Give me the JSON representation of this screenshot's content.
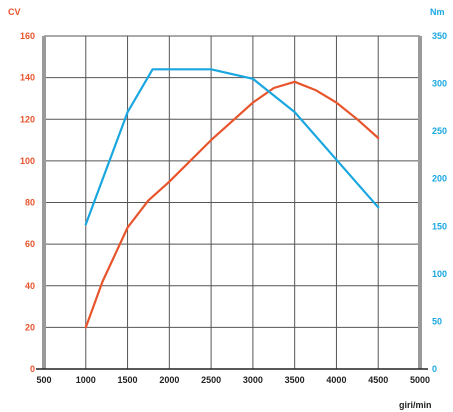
{
  "chart_data": {
    "type": "line",
    "y_left_unit": "CV",
    "y_right_unit": "Nm",
    "x_unit": "giri/min",
    "xlim": [
      500,
      5000
    ],
    "ylim_left": [
      0,
      160
    ],
    "ylim_right": [
      0,
      350
    ],
    "x_ticks": [
      500,
      1000,
      1500,
      2000,
      2500,
      3000,
      3500,
      4000,
      4500,
      5000
    ],
    "y_left_ticks": [
      0,
      20,
      40,
      60,
      80,
      100,
      120,
      140,
      160
    ],
    "y_right_ticks": [
      0,
      50,
      100,
      150,
      200,
      250,
      300,
      350
    ],
    "grid": true,
    "series": [
      {
        "axis": "left",
        "color": "#e8542c",
        "points": [
          [
            1000,
            20
          ],
          [
            1200,
            42
          ],
          [
            1500,
            68
          ],
          [
            1750,
            81
          ],
          [
            2000,
            90
          ],
          [
            2500,
            110
          ],
          [
            3000,
            128
          ],
          [
            3250,
            135
          ],
          [
            3500,
            138
          ],
          [
            3750,
            134
          ],
          [
            4000,
            128
          ],
          [
            4250,
            120
          ],
          [
            4500,
            111
          ]
        ]
      },
      {
        "axis": "right",
        "color": "#1aa7e0",
        "points": [
          [
            1000,
            152
          ],
          [
            1500,
            270
          ],
          [
            1800,
            315
          ],
          [
            2500,
            315
          ],
          [
            3000,
            305
          ],
          [
            3500,
            270
          ],
          [
            4000,
            220
          ],
          [
            4500,
            170
          ]
        ]
      }
    ]
  }
}
